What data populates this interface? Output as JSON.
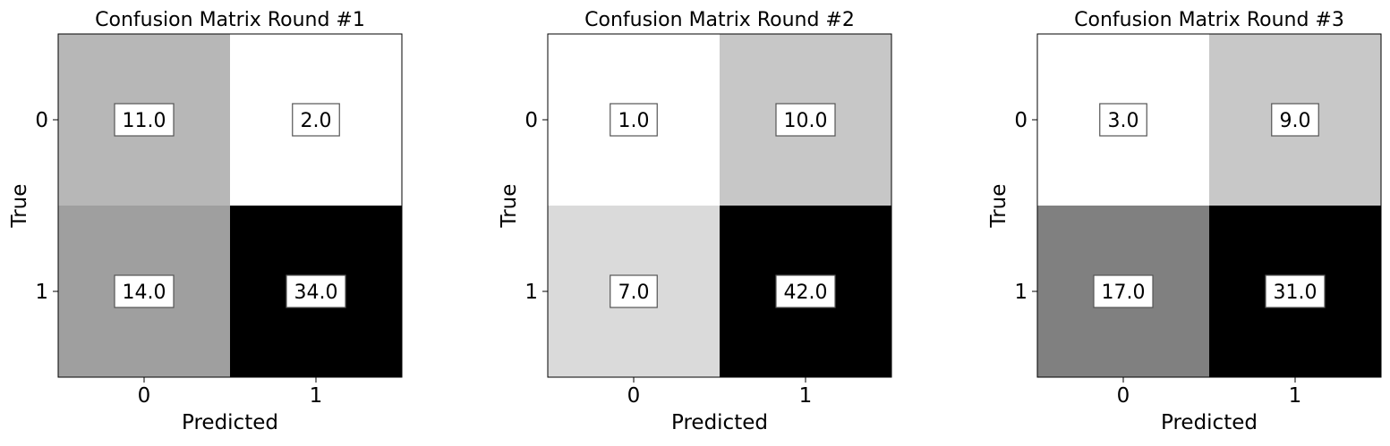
{
  "chart_data": [
    {
      "type": "heatmap",
      "title": "Confusion Matrix Round #1",
      "xlabel": "Predicted",
      "ylabel": "True",
      "x_categories": [
        "0",
        "1"
      ],
      "y_categories": [
        "0",
        "1"
      ],
      "values": [
        [
          11.0,
          2.0
        ],
        [
          14.0,
          34.0
        ]
      ],
      "cell_labels": [
        [
          "11.0",
          "2.0"
        ],
        [
          "14.0",
          "34.0"
        ]
      ],
      "colormap": "grayscale (white = low, black = high)"
    },
    {
      "type": "heatmap",
      "title": "Confusion Matrix Round #2",
      "xlabel": "Predicted",
      "ylabel": "True",
      "x_categories": [
        "0",
        "1"
      ],
      "y_categories": [
        "0",
        "1"
      ],
      "values": [
        [
          1.0,
          10.0
        ],
        [
          7.0,
          42.0
        ]
      ],
      "cell_labels": [
        [
          "1.0",
          "10.0"
        ],
        [
          "7.0",
          "42.0"
        ]
      ],
      "colormap": "grayscale (white = low, black = high)"
    },
    {
      "type": "heatmap",
      "title": "Confusion Matrix Round #3",
      "xlabel": "Predicted",
      "ylabel": "True",
      "x_categories": [
        "0",
        "1"
      ],
      "y_categories": [
        "0",
        "1"
      ],
      "values": [
        [
          3.0,
          9.0
        ],
        [
          17.0,
          31.0
        ]
      ],
      "cell_labels": [
        [
          "3.0",
          "9.0"
        ],
        [
          "17.0",
          "31.0"
        ]
      ],
      "colormap": "grayscale (white = low, black = high)"
    }
  ]
}
